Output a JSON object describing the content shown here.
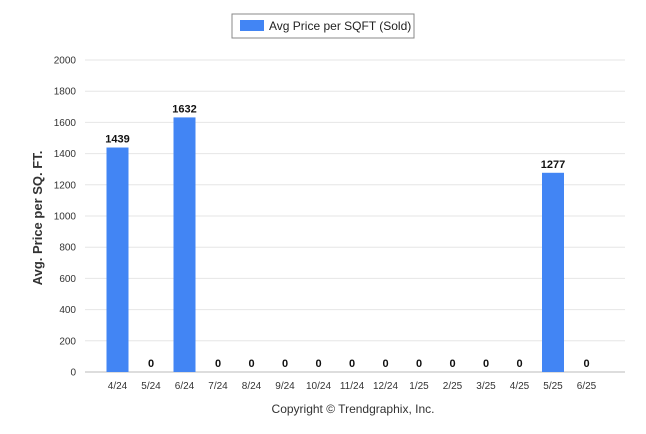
{
  "chart_data": {
    "type": "bar",
    "categories": [
      "4/24",
      "5/24",
      "6/24",
      "7/24",
      "8/24",
      "9/24",
      "10/24",
      "11/24",
      "12/24",
      "1/25",
      "2/25",
      "3/25",
      "4/25",
      "5/25",
      "6/25"
    ],
    "series": [
      {
        "name": "Avg Price per SQFT (Sold)",
        "values": [
          1439,
          0,
          1632,
          0,
          0,
          0,
          0,
          0,
          0,
          0,
          0,
          0,
          0,
          1277,
          0
        ],
        "color": "#4285f4"
      }
    ],
    "data_labels": [
      "1439",
      "0",
      "1632",
      "0",
      "0",
      "0",
      "0",
      "0",
      "0",
      "0",
      "0",
      "0",
      "0",
      "1277",
      "0"
    ],
    "ylabel": "Avg. Price per SQ. FT.",
    "xlabel": "",
    "ylim": [
      0,
      2000
    ],
    "yticks": [
      0,
      200,
      400,
      600,
      800,
      1000,
      1200,
      1400,
      1600,
      1800,
      2000
    ],
    "grid": true,
    "legend_position": "top-center"
  },
  "footer": {
    "copyright": "Copyright © Trendgraphix, Inc."
  }
}
